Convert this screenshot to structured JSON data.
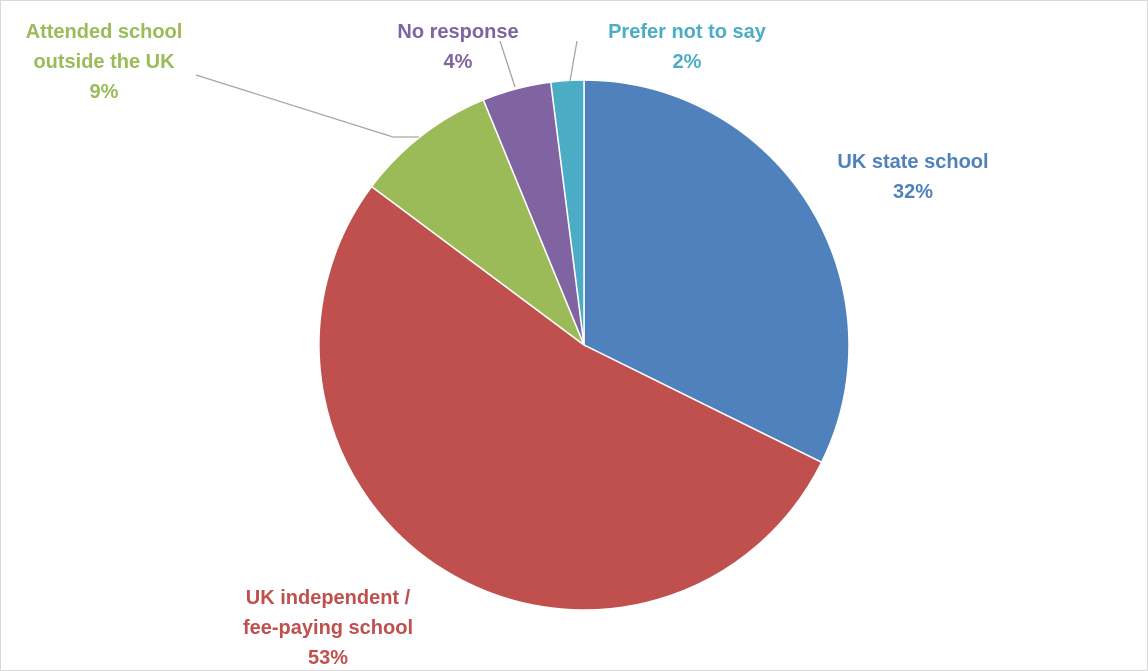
{
  "chart_data": {
    "type": "pie",
    "start_angle_deg": 0,
    "direction": "clockwise",
    "slices": [
      {
        "label_lines": [
          "UK state school"
        ],
        "pct_label": "32%",
        "value": 32.3,
        "color": "#4f81bd"
      },
      {
        "label_lines": [
          "UK independent /",
          "fee-paying school"
        ],
        "pct_label": "53%",
        "value": 52.9,
        "color": "#c0504d"
      },
      {
        "label_lines": [
          "Attended school",
          "outside the UK"
        ],
        "pct_label": "9%",
        "value": 8.6,
        "color": "#9bbb59"
      },
      {
        "label_lines": [
          "No response"
        ],
        "pct_label": "4%",
        "value": 4.2,
        "color": "#8064a2"
      },
      {
        "label_lines": [
          "Prefer not to say"
        ],
        "pct_label": "2%",
        "value": 2.0,
        "color": "#4bacc6"
      }
    ]
  }
}
